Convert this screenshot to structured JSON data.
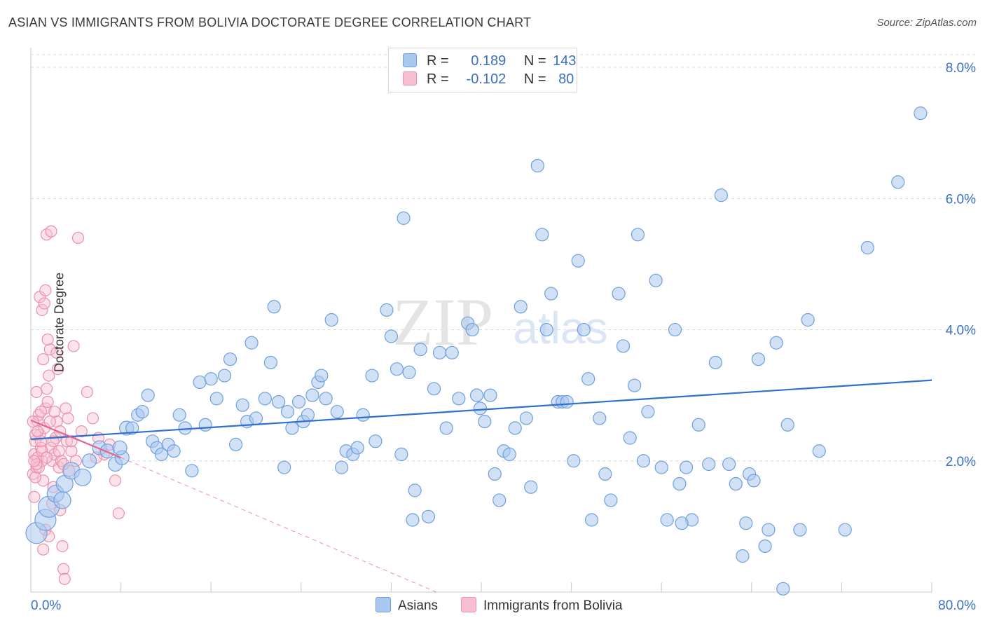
{
  "title": "ASIAN VS IMMIGRANTS FROM BOLIVIA DOCTORATE DEGREE CORRELATION CHART",
  "source": "Source: ZipAtlas.com",
  "watermark": {
    "zip": "ZIP",
    "atlas": "atlas"
  },
  "legend": {
    "rows": [
      {
        "r_label": "R =",
        "r_value": "0.189",
        "n_label": "N =",
        "n_value": "143"
      },
      {
        "r_label": "R =",
        "r_value": "-0.102",
        "n_label": "N =",
        "n_value": "80"
      }
    ]
  },
  "colors": {
    "blue_fill": "#aac8ee",
    "blue_stroke": "#6f9fdd",
    "blue_line": "#2f6fcf",
    "pink_fill": "#f6c0d0",
    "pink_stroke": "#ec8fae",
    "pink_line": "#e8608f",
    "axis_text": "#3a6fc4",
    "grid": "#dcdcdc"
  },
  "chart_data": {
    "type": "scatter",
    "title": "ASIAN VS IMMIGRANTS FROM BOLIVIA DOCTORATE DEGREE CORRELATION CHART",
    "xlabel": "",
    "ylabel": "Doctorate Degree",
    "xlim": [
      0,
      80
    ],
    "ylim": [
      0,
      8.3
    ],
    "x_tick_labels": [
      "0.0%",
      "80.0%"
    ],
    "y_ticks": [
      2.0,
      4.0,
      6.0,
      8.0
    ],
    "y_tick_labels": [
      "2.0%",
      "4.0%",
      "6.0%",
      "8.0%"
    ],
    "series": [
      {
        "name": "Asians",
        "R": 0.189,
        "N": 143,
        "trend": {
          "x0": 0,
          "y0": 2.33,
          "x1": 80,
          "y1": 3.23
        },
        "points": [
          [
            0.5,
            0.9
          ],
          [
            1.3,
            1.1
          ],
          [
            1.6,
            1.3
          ],
          [
            2.2,
            1.5
          ],
          [
            3.0,
            1.65
          ],
          [
            3.6,
            1.85
          ],
          [
            4.6,
            1.75
          ],
          [
            2.8,
            1.4
          ],
          [
            5.2,
            2.0
          ],
          [
            6.1,
            2.2
          ],
          [
            6.8,
            2.15
          ],
          [
            7.5,
            1.95
          ],
          [
            8.1,
            2.05
          ],
          [
            7.9,
            2.2
          ],
          [
            8.5,
            2.5
          ],
          [
            9.0,
            2.5
          ],
          [
            9.5,
            2.7
          ],
          [
            9.9,
            2.75
          ],
          [
            10.4,
            3.0
          ],
          [
            10.8,
            2.3
          ],
          [
            11.2,
            2.2
          ],
          [
            11.6,
            2.1
          ],
          [
            12.2,
            2.25
          ],
          [
            12.7,
            2.15
          ],
          [
            13.2,
            2.7
          ],
          [
            13.7,
            2.5
          ],
          [
            14.3,
            1.85
          ],
          [
            15.0,
            3.2
          ],
          [
            15.5,
            2.55
          ],
          [
            16.0,
            3.25
          ],
          [
            16.5,
            2.95
          ],
          [
            17.2,
            3.3
          ],
          [
            17.7,
            3.55
          ],
          [
            18.2,
            2.25
          ],
          [
            18.8,
            2.85
          ],
          [
            19.2,
            2.6
          ],
          [
            19.6,
            3.8
          ],
          [
            20.0,
            2.65
          ],
          [
            20.8,
            2.95
          ],
          [
            21.3,
            3.5
          ],
          [
            21.6,
            4.35
          ],
          [
            22.0,
            2.9
          ],
          [
            22.5,
            1.9
          ],
          [
            22.8,
            2.75
          ],
          [
            23.2,
            2.5
          ],
          [
            23.8,
            2.9
          ],
          [
            24.2,
            2.6
          ],
          [
            24.6,
            2.7
          ],
          [
            25.0,
            3.0
          ],
          [
            25.5,
            3.2
          ],
          [
            25.8,
            3.3
          ],
          [
            26.2,
            2.95
          ],
          [
            26.7,
            4.15
          ],
          [
            27.2,
            2.75
          ],
          [
            27.6,
            1.9
          ],
          [
            28.0,
            2.15
          ],
          [
            28.6,
            2.1
          ],
          [
            29.0,
            2.2
          ],
          [
            29.5,
            2.7
          ],
          [
            30.3,
            3.3
          ],
          [
            30.6,
            2.3
          ],
          [
            31.6,
            4.3
          ],
          [
            32.0,
            3.9
          ],
          [
            32.5,
            3.4
          ],
          [
            32.9,
            2.1
          ],
          [
            33.1,
            5.7
          ],
          [
            33.6,
            3.35
          ],
          [
            34.1,
            1.55
          ],
          [
            34.6,
            3.7
          ],
          [
            35.3,
            1.15
          ],
          [
            35.8,
            3.1
          ],
          [
            36.3,
            3.65
          ],
          [
            36.9,
            2.5
          ],
          [
            37.4,
            3.65
          ],
          [
            38.0,
            2.95
          ],
          [
            38.8,
            4.1
          ],
          [
            39.2,
            4.0
          ],
          [
            39.6,
            3.0
          ],
          [
            39.9,
            2.8
          ],
          [
            40.3,
            2.6
          ],
          [
            40.8,
            3.0
          ],
          [
            41.2,
            1.8
          ],
          [
            41.6,
            1.4
          ],
          [
            42.0,
            2.15
          ],
          [
            42.5,
            2.1
          ],
          [
            43.0,
            2.5
          ],
          [
            43.5,
            4.35
          ],
          [
            44.0,
            2.65
          ],
          [
            44.4,
            1.6
          ],
          [
            45.0,
            6.5
          ],
          [
            45.4,
            5.45
          ],
          [
            45.8,
            4.0
          ],
          [
            46.2,
            4.55
          ],
          [
            46.8,
            2.9
          ],
          [
            47.2,
            2.9
          ],
          [
            47.6,
            2.9
          ],
          [
            48.2,
            2.0
          ],
          [
            48.6,
            5.05
          ],
          [
            49.1,
            4.0
          ],
          [
            49.5,
            3.25
          ],
          [
            49.8,
            1.1
          ],
          [
            50.5,
            2.65
          ],
          [
            51.0,
            1.8
          ],
          [
            51.5,
            1.4
          ],
          [
            52.2,
            4.55
          ],
          [
            52.6,
            3.75
          ],
          [
            53.2,
            2.35
          ],
          [
            53.6,
            3.15
          ],
          [
            53.9,
            5.45
          ],
          [
            54.4,
            2.0
          ],
          [
            54.8,
            2.75
          ],
          [
            55.5,
            4.75
          ],
          [
            56.0,
            1.9
          ],
          [
            56.5,
            1.1
          ],
          [
            57.2,
            4.0
          ],
          [
            57.6,
            1.65
          ],
          [
            58.2,
            1.9
          ],
          [
            58.7,
            1.1
          ],
          [
            59.3,
            2.55
          ],
          [
            60.2,
            1.95
          ],
          [
            60.8,
            3.5
          ],
          [
            61.3,
            6.05
          ],
          [
            62.0,
            1.95
          ],
          [
            62.6,
            1.65
          ],
          [
            63.2,
            0.55
          ],
          [
            63.8,
            1.8
          ],
          [
            64.2,
            1.7
          ],
          [
            64.6,
            3.55
          ],
          [
            65.2,
            0.7
          ],
          [
            65.5,
            0.95
          ],
          [
            66.2,
            3.8
          ],
          [
            66.8,
            0.05
          ],
          [
            67.2,
            2.55
          ],
          [
            68.3,
            0.95
          ],
          [
            69.0,
            4.15
          ],
          [
            70.0,
            2.15
          ],
          [
            72.3,
            0.95
          ],
          [
            74.3,
            5.25
          ],
          [
            77.0,
            6.25
          ],
          [
            79.0,
            7.3
          ],
          [
            63.5,
            1.05
          ],
          [
            57.8,
            1.05
          ],
          [
            33.9,
            1.1
          ]
        ]
      },
      {
        "name": "Immigrants from Bolivia",
        "R": -0.102,
        "N": 80,
        "trend": {
          "x0": 0,
          "y0": 2.62,
          "x1": 8,
          "y1": 2.05
        },
        "trend_dashed_to": {
          "x": 36,
          "y": 0.0
        },
        "points": [
          [
            0.2,
            1.8
          ],
          [
            0.3,
            2.1
          ],
          [
            0.4,
            2.3
          ],
          [
            0.5,
            1.9
          ],
          [
            0.6,
            2.6
          ],
          [
            0.7,
            2.7
          ],
          [
            0.8,
            2.4
          ],
          [
            0.9,
            2.2
          ],
          [
            1.0,
            2.0
          ],
          [
            1.1,
            1.7
          ],
          [
            1.2,
            2.5
          ],
          [
            1.3,
            2.8
          ],
          [
            1.4,
            3.1
          ],
          [
            1.5,
            2.9
          ],
          [
            1.6,
            3.3
          ],
          [
            1.7,
            3.7
          ],
          [
            1.8,
            2.2
          ],
          [
            1.9,
            2.0
          ],
          [
            2.0,
            1.6
          ],
          [
            2.1,
            2.1
          ],
          [
            2.2,
            2.35
          ],
          [
            2.3,
            2.6
          ],
          [
            2.4,
            3.4
          ],
          [
            2.5,
            1.9
          ],
          [
            2.6,
            2.45
          ],
          [
            2.7,
            2.0
          ],
          [
            2.8,
            0.7
          ],
          [
            2.9,
            0.35
          ],
          [
            3.0,
            0.2
          ],
          [
            3.1,
            2.8
          ],
          [
            3.2,
            2.3
          ],
          [
            3.4,
            1.85
          ],
          [
            3.6,
            2.15
          ],
          [
            3.8,
            3.75
          ],
          [
            4.2,
            5.4
          ],
          [
            5.0,
            3.05
          ],
          [
            5.5,
            2.65
          ],
          [
            6.0,
            2.35
          ],
          [
            6.5,
            2.1
          ],
          [
            7.0,
            2.25
          ],
          [
            7.5,
            1.7
          ],
          [
            7.8,
            1.2
          ],
          [
            0.3,
            1.45
          ],
          [
            0.5,
            3.05
          ],
          [
            0.8,
            4.5
          ],
          [
            1.0,
            4.3
          ],
          [
            1.2,
            4.4
          ],
          [
            1.3,
            4.6
          ],
          [
            1.4,
            5.45
          ],
          [
            1.8,
            5.5
          ],
          [
            0.6,
            2.05
          ],
          [
            0.9,
            2.75
          ],
          [
            1.1,
            3.55
          ],
          [
            1.5,
            3.85
          ],
          [
            2.3,
            3.65
          ],
          [
            0.4,
            1.75
          ],
          [
            0.7,
            1.9
          ],
          [
            1.0,
            2.15
          ],
          [
            1.3,
            0.95
          ],
          [
            1.6,
            0.85
          ],
          [
            1.1,
            0.65
          ],
          [
            1.9,
            1.35
          ],
          [
            2.6,
            1.25
          ],
          [
            0.4,
            2.4
          ],
          [
            1.7,
            2.6
          ],
          [
            2.1,
            2.75
          ],
          [
            2.5,
            2.15
          ],
          [
            3.3,
            2.65
          ],
          [
            4.5,
            2.45
          ],
          [
            5.8,
            2.05
          ],
          [
            0.2,
            2.6
          ],
          [
            0.6,
            2.45
          ],
          [
            0.5,
            1.95
          ],
          [
            0.9,
            2.3
          ],
          [
            1.4,
            2.05
          ],
          [
            2.0,
            2.3
          ],
          [
            2.9,
            1.95
          ],
          [
            3.6,
            2.3
          ],
          [
            4.0,
            2.0
          ],
          [
            0.3,
            2.0
          ]
        ]
      }
    ],
    "bottom_legend": [
      "Asians",
      "Immigrants from Bolivia"
    ]
  }
}
